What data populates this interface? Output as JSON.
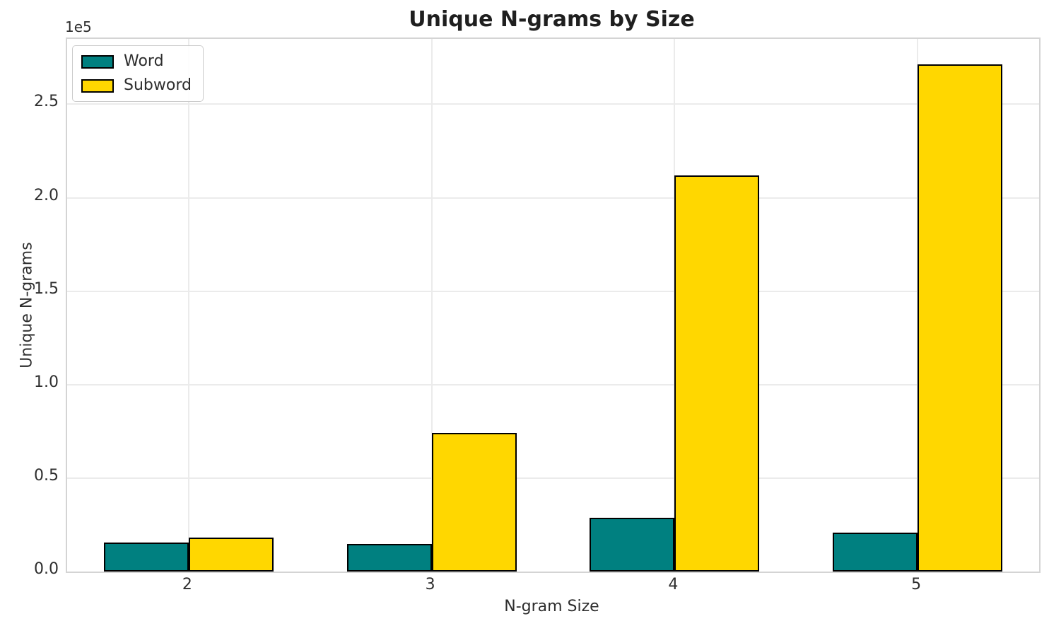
{
  "chart_data": {
    "type": "bar",
    "title": "Unique N-grams by Size",
    "xlabel": "N-gram Size",
    "ylabel": "Unique N-grams",
    "categories": [
      "2",
      "3",
      "4",
      "5"
    ],
    "series": [
      {
        "name": "Word",
        "color": "#008080",
        "values": [
          15400,
          14900,
          28600,
          21000
        ]
      },
      {
        "name": "Subword",
        "color": "#FFD700",
        "values": [
          18100,
          74000,
          212000,
          271500
        ]
      }
    ],
    "bar_edge_color": "#000000",
    "ylim": [
      0,
      285000
    ],
    "yticks": {
      "values": [
        0,
        50000,
        100000,
        150000,
        200000,
        250000
      ],
      "labels": [
        "0.0",
        "0.5",
        "1.0",
        "1.5",
        "2.0",
        "2.5"
      ],
      "offset_label": "1e5"
    },
    "legend": {
      "position": "upper-left",
      "entries": [
        "Word",
        "Subword"
      ]
    },
    "grid": true,
    "colors": {
      "grid": "#ebebeb",
      "spine": "#d4d4d4",
      "text": "#2e2e2e",
      "title": "#1f1f1f",
      "background": "#ffffff"
    }
  }
}
